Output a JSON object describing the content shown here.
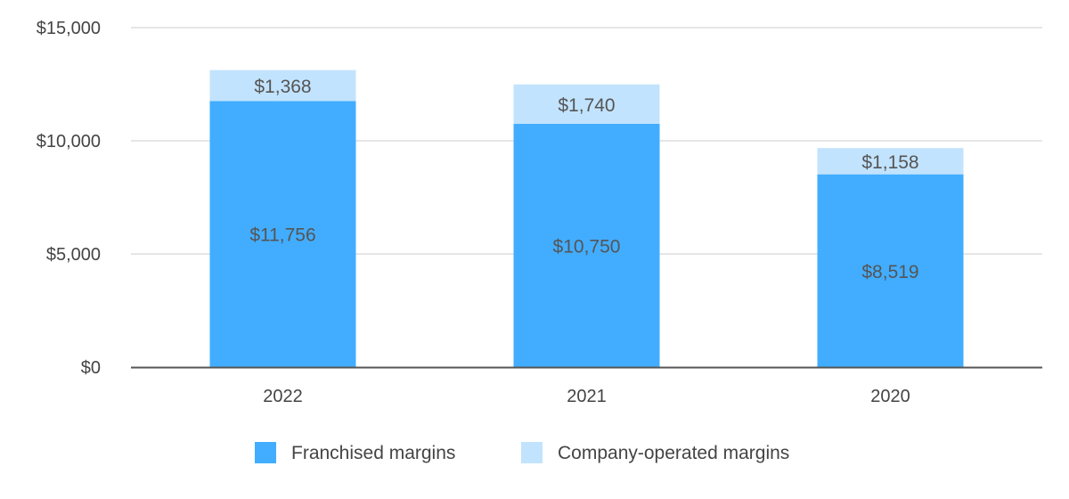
{
  "chart_data": {
    "type": "bar",
    "stacked": true,
    "categories": [
      "2022",
      "2021",
      "2020"
    ],
    "series": [
      {
        "name": "Franchised margins",
        "values": [
          11756,
          10750,
          8519
        ],
        "labels": [
          "$11,756",
          "$10,750",
          "$8,519"
        ],
        "color": "#42adff"
      },
      {
        "name": "Company-operated margins",
        "values": [
          1368,
          1740,
          1158
        ],
        "labels": [
          "$1,368",
          "$1,740",
          "$1,158"
        ],
        "color": "#c2e3fd"
      }
    ],
    "ylim": [
      0,
      15000
    ],
    "yticks": [
      {
        "value": 0,
        "label": "$0"
      },
      {
        "value": 5000,
        "label": "$5,000"
      },
      {
        "value": 10000,
        "label": "$10,000"
      },
      {
        "value": 15000,
        "label": "$15,000"
      }
    ],
    "grid": true,
    "legend_position": "bottom",
    "title": "",
    "xlabel": "",
    "ylabel": ""
  }
}
